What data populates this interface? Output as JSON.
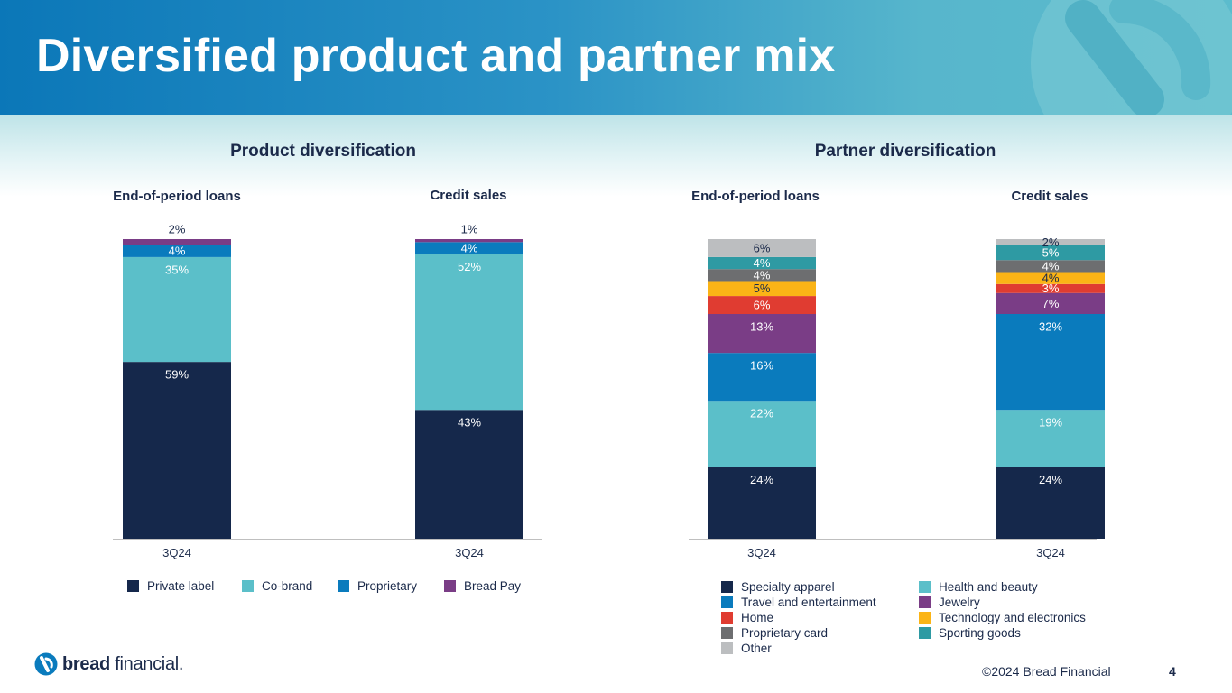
{
  "title": "Diversified product and partner mix",
  "sections": {
    "product": {
      "title": "Product diversification",
      "loans_label": "End-of-period loans",
      "sales_label": "Credit sales"
    },
    "partner": {
      "title": "Partner diversification",
      "loans_label": "End-of-period loans",
      "sales_label": "Credit sales"
    }
  },
  "chart_data": [
    {
      "type": "bar",
      "stacked": true,
      "categories": [
        "3Q24",
        "3Q24"
      ],
      "ylim": [
        0,
        100
      ],
      "unit": "%",
      "legend_position": "bottom",
      "series": [
        {
          "name": "Private label",
          "color": "#15284b",
          "label_color": "#ffffff",
          "values": [
            59,
            43
          ],
          "labels": [
            "59%",
            "43%"
          ]
        },
        {
          "name": "Co-brand",
          "color": "#5bbfc9",
          "label_color": "#ffffff",
          "values": [
            35,
            52
          ],
          "labels": [
            "35%",
            "52%"
          ]
        },
        {
          "name": "Proprietary",
          "color": "#0a7bbd",
          "label_color": "#ffffff",
          "values": [
            4,
            4
          ],
          "labels": [
            "4%",
            "4%"
          ]
        },
        {
          "name": "Bread Pay",
          "color": "#7a3d86",
          "label_color": "#1b2a4a",
          "values": [
            2,
            1
          ],
          "labels": [
            "2%",
            "1%"
          ],
          "labels_above": true
        }
      ]
    },
    {
      "type": "bar",
      "stacked": true,
      "categories": [
        "3Q24",
        "3Q24"
      ],
      "ylim": [
        0,
        100
      ],
      "unit": "%",
      "legend_position": "bottom",
      "series": [
        {
          "name": "Specialty apparel",
          "color": "#15284b",
          "label_color": "#ffffff",
          "values": [
            24,
            24
          ],
          "labels": [
            "24%",
            "24%"
          ]
        },
        {
          "name": "Health and beauty",
          "color": "#5bbfc9",
          "label_color": "#ffffff",
          "values": [
            22,
            19
          ],
          "labels": [
            "22%",
            "19%"
          ]
        },
        {
          "name": "Travel and entertainment",
          "color": "#0a7bbd",
          "label_color": "#ffffff",
          "values": [
            16,
            32
          ],
          "labels": [
            "16%",
            "32%"
          ]
        },
        {
          "name": "Jewelry",
          "color": "#7a3d86",
          "label_color": "#ffffff",
          "values": [
            13,
            7
          ],
          "labels": [
            "13%",
            "7%"
          ]
        },
        {
          "name": "Home",
          "color": "#e03c31",
          "label_color": "#ffffff",
          "values": [
            6,
            3
          ],
          "labels": [
            "6%",
            "3%"
          ]
        },
        {
          "name": "Technology and electronics",
          "color": "#fbb416",
          "label_color": "#1b2a4a",
          "values": [
            5,
            4
          ],
          "labels": [
            "5%",
            "4%"
          ]
        },
        {
          "name": "Proprietary card",
          "color": "#6d6e70",
          "label_color": "#ffffff",
          "values": [
            4,
            4
          ],
          "labels": [
            "4%",
            "4%"
          ]
        },
        {
          "name": "Sporting goods",
          "color": "#2e9aa3",
          "label_color": "#ffffff",
          "values": [
            4,
            5
          ],
          "labels": [
            "4%",
            "5%"
          ]
        },
        {
          "name": "Other",
          "color": "#bcbec0",
          "label_color": "#1b2a4a",
          "values": [
            6,
            2
          ],
          "labels": [
            "6%",
            "2%"
          ]
        }
      ],
      "legend_order": [
        "Specialty apparel",
        "Health and beauty",
        "Travel and entertainment",
        "Jewelry",
        "Home",
        "Technology and electronics",
        "Proprietary card",
        "Sporting goods",
        "Other"
      ]
    }
  ],
  "footer": {
    "brand_bold": "bread",
    "brand_rest": " financial.",
    "copyright": "©2024 Bread Financial",
    "page_number": "4"
  }
}
